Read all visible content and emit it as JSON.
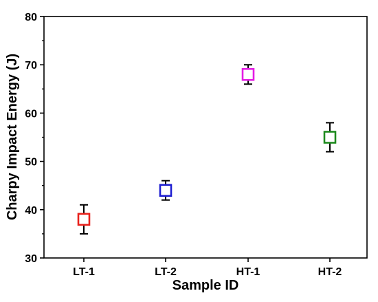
{
  "chart_data": {
    "type": "scatter",
    "title": "",
    "xlabel": "Sample ID",
    "ylabel": "Charpy Impact Energy (J)",
    "categories": [
      "LT-1",
      "LT-2",
      "HT-1",
      "HT-2"
    ],
    "ylim": [
      30,
      80
    ],
    "yticks": [
      "30",
      "40",
      "50",
      "60",
      "70",
      "80"
    ],
    "grid": false,
    "marker": "open-square",
    "points": [
      {
        "category": "LT-1",
        "value": 38,
        "error_low": 35,
        "error_high": 41,
        "color": "#e8211b"
      },
      {
        "category": "LT-2",
        "value": 44,
        "error_low": 42,
        "error_high": 46,
        "color": "#1f1fd1"
      },
      {
        "category": "HT-1",
        "value": 68,
        "error_low": 66,
        "error_high": 70,
        "color": "#e41ce4"
      },
      {
        "category": "HT-2",
        "value": 55,
        "error_low": 52,
        "error_high": 58,
        "color": "#1e8a1e"
      }
    ]
  }
}
